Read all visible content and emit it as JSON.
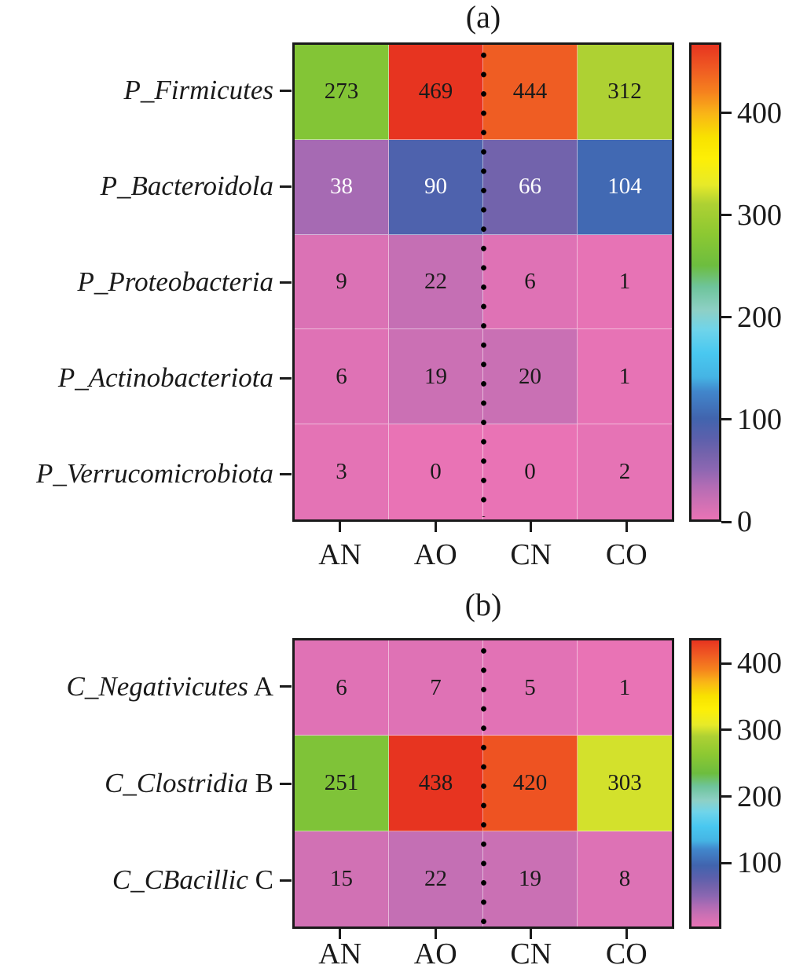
{
  "page_background": "#ffffff",
  "colors": {
    "frame": "#1a1a1a",
    "text": "#1a1a1a",
    "cell_text_dark": "#1a1a1a",
    "cell_text_light": "#ffffff",
    "dot_line": "#000000",
    "gridline": "rgba(255,255,255,0.5)"
  },
  "colormap_stops": [
    [
      0,
      "#e973b5"
    ],
    [
      0.04,
      "#cb70b4"
    ],
    [
      0.07,
      "#b26cb4"
    ],
    [
      0.105,
      "#8d67b2"
    ],
    [
      0.136,
      "#7663ac"
    ],
    [
      0.17,
      "#5c60ac"
    ],
    [
      0.213,
      "#4164ae"
    ],
    [
      0.27,
      "#4187cc"
    ],
    [
      0.3,
      "#45b4e4"
    ],
    [
      0.35,
      "#49c8f0"
    ],
    [
      0.4,
      "#6fd4ea"
    ],
    [
      0.44,
      "#8ed0c6"
    ],
    [
      0.49,
      "#6ec49b"
    ],
    [
      0.535,
      "#6dbd3f"
    ],
    [
      0.6,
      "#8cc832"
    ],
    [
      0.665,
      "#aed133"
    ],
    [
      0.705,
      "#e7ea29"
    ],
    [
      0.76,
      "#fdef06"
    ],
    [
      0.805,
      "#f8e200"
    ],
    [
      0.855,
      "#f9b517"
    ],
    [
      0.9,
      "#f5821e"
    ],
    [
      0.95,
      "#ef5a23"
    ],
    [
      1,
      "#e73420"
    ]
  ],
  "chart_data": [
    {
      "type": "heatmap",
      "panel": "a",
      "title": "(a)",
      "rows": [
        "P_Firmicutes",
        "P_Bacteroidola",
        "P_Proteobacteria",
        "P_Actinobacteriota",
        "P_Verrucomicrobiota"
      ],
      "row_suffixes": [
        "",
        "",
        "",
        "",
        ""
      ],
      "columns": [
        "AN",
        "AO",
        "CN",
        "CO"
      ],
      "values": [
        [
          273,
          469,
          444,
          312
        ],
        [
          38,
          90,
          66,
          104
        ],
        [
          9,
          22,
          6,
          1
        ],
        [
          6,
          19,
          20,
          1
        ],
        [
          3,
          0,
          0,
          2
        ]
      ],
      "vmin": 0,
      "vmax": 469,
      "colorbar_ticks": [
        0,
        100,
        200,
        300,
        400
      ],
      "white_text_cells": [
        [
          1,
          0
        ],
        [
          1,
          1
        ],
        [
          1,
          2
        ],
        [
          1,
          3
        ]
      ],
      "center_divider": "dotted-vertical-line"
    },
    {
      "type": "heatmap",
      "panel": "b",
      "title": "(b)",
      "rows": [
        "C_Negativicutes",
        "C_Clostridia",
        "C_CBacillic"
      ],
      "row_suffixes": [
        " A",
        " B",
        " C"
      ],
      "columns": [
        "AN",
        "AO",
        "CN",
        "CO"
      ],
      "values": [
        [
          6,
          7,
          5,
          1
        ],
        [
          251,
          438,
          420,
          303
        ],
        [
          15,
          22,
          19,
          8
        ]
      ],
      "vmin": 1,
      "vmax": 438,
      "colorbar_ticks": [
        100,
        200,
        300,
        400
      ],
      "white_text_cells": [],
      "center_divider": "dotted-vertical-line"
    }
  ]
}
